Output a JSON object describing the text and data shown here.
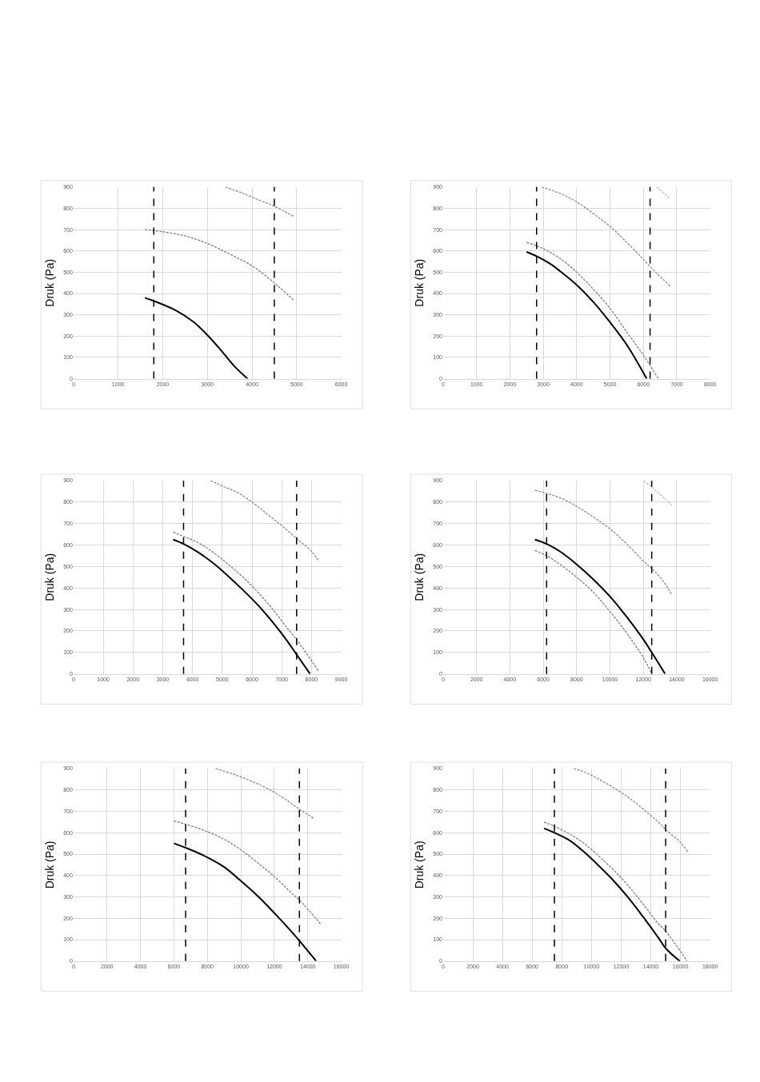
{
  "chart_data": [
    {
      "type": "line",
      "ylabel": "Druk (Pa)",
      "xlim": [
        0,
        6000
      ],
      "xticks": [
        0,
        1000,
        2000,
        3000,
        4000,
        5000,
        6000
      ],
      "ylim": [
        0,
        900
      ],
      "yticks": [
        0,
        100,
        200,
        300,
        400,
        500,
        600,
        700,
        800,
        900
      ],
      "grid": true,
      "series": [
        {
          "color": "#000000",
          "line_style": "solid",
          "x": [
            1600,
            1800,
            2300,
            2700,
            3000,
            3300,
            3600,
            3900
          ],
          "values": [
            380,
            365,
            320,
            265,
            205,
            135,
            60,
            0
          ]
        },
        {
          "color": "#7f7f7f",
          "line_style": "dashed",
          "x": [
            1600,
            2000,
            2500,
            3000,
            3500,
            4000,
            4500,
            4950
          ],
          "values": [
            700,
            690,
            670,
            635,
            585,
            530,
            450,
            365
          ]
        },
        {
          "color": "#8c8c8c",
          "line_style": "dashed",
          "x": [
            3400,
            3800,
            4200,
            4500,
            4950
          ],
          "values": [
            900,
            870,
            835,
            810,
            760
          ]
        }
      ],
      "ref_lines": [
        {
          "axis": "x",
          "value": 1800,
          "color": "#000000",
          "line_style": "dashed"
        },
        {
          "axis": "x",
          "value": 4500,
          "color": "#000000",
          "line_style": "dashed"
        }
      ]
    },
    {
      "type": "line",
      "ylabel": "Druk (Pa)",
      "xlim": [
        0,
        8000
      ],
      "xticks": [
        0,
        1000,
        2000,
        3000,
        4000,
        5000,
        6000,
        7000,
        8000
      ],
      "ylim": [
        0,
        900
      ],
      "yticks": [
        0,
        100,
        200,
        300,
        400,
        500,
        600,
        700,
        800,
        900
      ],
      "grid": true,
      "series": [
        {
          "color": "#000000",
          "line_style": "solid",
          "x": [
            2500,
            2800,
            3200,
            3500,
            4000,
            4500,
            5000,
            5500,
            6100
          ],
          "values": [
            595,
            575,
            540,
            505,
            440,
            360,
            265,
            160,
            0
          ]
        },
        {
          "color": "#7f7f7f",
          "line_style": "dashed",
          "x": [
            2500,
            3000,
            3500,
            4000,
            4500,
            5000,
            5500,
            6000,
            6450
          ],
          "values": [
            640,
            610,
            565,
            500,
            420,
            330,
            220,
            110,
            0
          ]
        },
        {
          "color": "#8c8c8c",
          "line_style": "dashed",
          "x": [
            2950,
            3500,
            4000,
            4500,
            5000,
            5500,
            6000,
            6400,
            6800
          ],
          "values": [
            900,
            870,
            830,
            775,
            715,
            640,
            560,
            495,
            435
          ]
        },
        {
          "color": "#bfbfbf",
          "line_style": "dashed",
          "x": [
            6400,
            6800
          ],
          "values": [
            900,
            845
          ]
        }
      ],
      "ref_lines": [
        {
          "axis": "x",
          "value": 2800,
          "color": "#000000",
          "line_style": "dashed"
        },
        {
          "axis": "x",
          "value": 6200,
          "color": "#000000",
          "line_style": "dashed"
        }
      ]
    },
    {
      "type": "line",
      "ylabel": "Druk (Pa)",
      "xlim": [
        0,
        9000
      ],
      "xticks": [
        0,
        1000,
        2000,
        3000,
        4000,
        5000,
        6000,
        7000,
        8000,
        9000
      ],
      "ylim": [
        0,
        900
      ],
      "yticks": [
        0,
        100,
        200,
        300,
        400,
        500,
        600,
        700,
        800,
        900
      ],
      "grid": true,
      "series": [
        {
          "color": "#000000",
          "line_style": "solid",
          "x": [
            3350,
            3700,
            4200,
            4700,
            5200,
            5700,
            6200,
            6700,
            7200,
            7500,
            7950
          ],
          "values": [
            625,
            605,
            565,
            515,
            455,
            390,
            320,
            240,
            150,
            90,
            0
          ]
        },
        {
          "color": "#7f7f7f",
          "line_style": "dashed",
          "x": [
            3350,
            3700,
            4200,
            4700,
            5200,
            5700,
            6200,
            6700,
            7200,
            7500,
            8250
          ],
          "values": [
            660,
            640,
            610,
            565,
            510,
            450,
            380,
            300,
            210,
            160,
            10
          ]
        },
        {
          "color": "#8c8c8c",
          "line_style": "dashed",
          "x": [
            4600,
            5000,
            5500,
            6000,
            6500,
            7000,
            7500,
            8000,
            8250
          ],
          "values": [
            900,
            875,
            845,
            800,
            745,
            690,
            630,
            570,
            525
          ]
        }
      ],
      "ref_lines": [
        {
          "axis": "x",
          "value": 3700,
          "color": "#000000",
          "line_style": "dashed"
        },
        {
          "axis": "x",
          "value": 7500,
          "color": "#000000",
          "line_style": "dashed"
        }
      ]
    },
    {
      "type": "line",
      "ylabel": "Druk (Pa)",
      "xlim": [
        0,
        16000
      ],
      "xticks": [
        0,
        2000,
        4000,
        6000,
        8000,
        10000,
        12000,
        14000,
        16000
      ],
      "ylim": [
        0,
        900
      ],
      "yticks": [
        0,
        100,
        200,
        300,
        400,
        500,
        600,
        700,
        800,
        900
      ],
      "grid": true,
      "series": [
        {
          "color": "#000000",
          "line_style": "solid",
          "x": [
            5500,
            6200,
            7000,
            8000,
            9000,
            10000,
            11000,
            12000,
            12500,
            13300
          ],
          "values": [
            625,
            605,
            570,
            510,
            440,
            360,
            265,
            160,
            100,
            0
          ]
        },
        {
          "color": "#7f7f7f",
          "line_style": "dashed",
          "x": [
            5500,
            6200,
            7000,
            8000,
            9000,
            10000,
            11000,
            12000,
            12500
          ],
          "values": [
            575,
            550,
            510,
            450,
            380,
            290,
            190,
            75,
            0
          ]
        },
        {
          "color": "#8c8c8c",
          "line_style": "dashed",
          "x": [
            5500,
            6200,
            7000,
            8000,
            9000,
            10000,
            11000,
            12000,
            12500,
            13000,
            13700
          ],
          "values": [
            855,
            840,
            820,
            780,
            730,
            675,
            605,
            525,
            490,
            450,
            370
          ]
        },
        {
          "color": "#bfbfbf",
          "line_style": "dashed",
          "x": [
            12000,
            12500,
            13700
          ],
          "values": [
            900,
            870,
            785
          ]
        }
      ],
      "ref_lines": [
        {
          "axis": "x",
          "value": 6200,
          "color": "#000000",
          "line_style": "dashed"
        },
        {
          "axis": "x",
          "value": 12500,
          "color": "#000000",
          "line_style": "dashed"
        }
      ]
    },
    {
      "type": "line",
      "ylabel": "Druk (Pa)",
      "xlim": [
        0,
        16000
      ],
      "xticks": [
        0,
        2000,
        4000,
        6000,
        8000,
        10000,
        12000,
        14000,
        16000
      ],
      "ylim": [
        0,
        900
      ],
      "yticks": [
        0,
        100,
        200,
        300,
        400,
        500,
        600,
        700,
        800,
        900
      ],
      "grid": true,
      "series": [
        {
          "color": "#000000",
          "line_style": "solid",
          "x": [
            6000,
            6700,
            8000,
            9000,
            10000,
            11000,
            12000,
            13000,
            13500,
            14500
          ],
          "values": [
            550,
            530,
            485,
            440,
            375,
            305,
            225,
            140,
            95,
            0
          ]
        },
        {
          "color": "#7f7f7f",
          "line_style": "dashed",
          "x": [
            6000,
            6700,
            8000,
            9000,
            10000,
            11000,
            12000,
            13000,
            13500,
            14800
          ],
          "values": [
            655,
            640,
            605,
            570,
            520,
            460,
            395,
            320,
            285,
            170
          ]
        },
        {
          "color": "#8c8c8c",
          "line_style": "dashed",
          "x": [
            8500,
            9500,
            10500,
            11500,
            12500,
            13500,
            14400
          ],
          "values": [
            900,
            875,
            845,
            810,
            765,
            710,
            665
          ]
        }
      ],
      "ref_lines": [
        {
          "axis": "x",
          "value": 6700,
          "color": "#000000",
          "line_style": "dashed"
        },
        {
          "axis": "x",
          "value": 13500,
          "color": "#000000",
          "line_style": "dashed"
        }
      ]
    },
    {
      "type": "line",
      "ylabel": "Druk (Pa)",
      "xlim": [
        0,
        18000
      ],
      "xticks": [
        0,
        2000,
        4000,
        6000,
        8000,
        10000,
        12000,
        14000,
        16000,
        18000
      ],
      "ylim": [
        0,
        900
      ],
      "yticks": [
        0,
        100,
        200,
        300,
        400,
        500,
        600,
        700,
        800,
        900
      ],
      "grid": true,
      "series": [
        {
          "color": "#000000",
          "line_style": "solid",
          "x": [
            6800,
            7500,
            8500,
            9500,
            10500,
            11500,
            12500,
            13500,
            14500,
            15000,
            15950
          ],
          "values": [
            620,
            600,
            565,
            510,
            445,
            375,
            295,
            205,
            110,
            60,
            0
          ]
        },
        {
          "color": "#7f7f7f",
          "line_style": "dashed",
          "x": [
            6800,
            7500,
            8500,
            9500,
            10500,
            11500,
            12500,
            13500,
            14500,
            15000,
            16450
          ],
          "values": [
            650,
            630,
            595,
            550,
            490,
            425,
            350,
            265,
            175,
            140,
            0
          ]
        },
        {
          "color": "#8c8c8c",
          "line_style": "dashed",
          "x": [
            8800,
            9500,
            10500,
            11500,
            12500,
            13500,
            14500,
            15000,
            16000,
            16500
          ],
          "values": [
            900,
            885,
            850,
            810,
            765,
            710,
            650,
            615,
            555,
            510
          ]
        }
      ],
      "ref_lines": [
        {
          "axis": "x",
          "value": 7500,
          "color": "#000000",
          "line_style": "dashed"
        },
        {
          "axis": "x",
          "value": 15000,
          "color": "#000000",
          "line_style": "dashed"
        }
      ]
    }
  ]
}
